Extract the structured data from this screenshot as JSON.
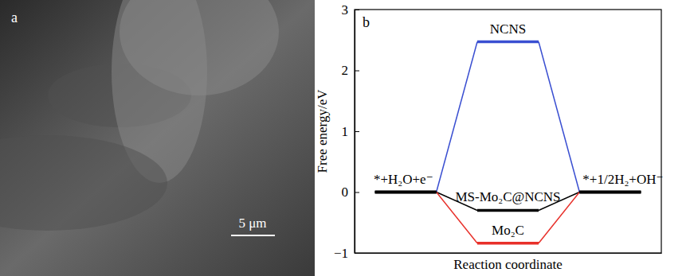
{
  "image_panel": {
    "panel_label": "a",
    "scale_bar": "5 μm"
  },
  "chart_data": {
    "type": "line",
    "panel_label": "b",
    "x_label": "Reaction coordinate",
    "y_label": "Free energy/eV",
    "categories": [
      "*+H₂O+e⁻",
      null,
      "*+1/2H₂+OH⁻"
    ],
    "series": [
      {
        "name": "NCNS",
        "color": "#3a4fd1",
        "values": [
          0,
          2.47,
          0
        ]
      },
      {
        "name": "MS-Mo₂C@NCNS",
        "color": "#000000",
        "values": [
          0,
          -0.3,
          0
        ]
      },
      {
        "name": "Mo₂C",
        "color": "#e8302a",
        "values": [
          0,
          -0.84,
          0
        ]
      }
    ],
    "ylim": [
      -1,
      3
    ],
    "yticks": [
      {
        "value": -1,
        "label": "−1"
      },
      0,
      1,
      2,
      3
    ],
    "tick_labels": "y"
  }
}
